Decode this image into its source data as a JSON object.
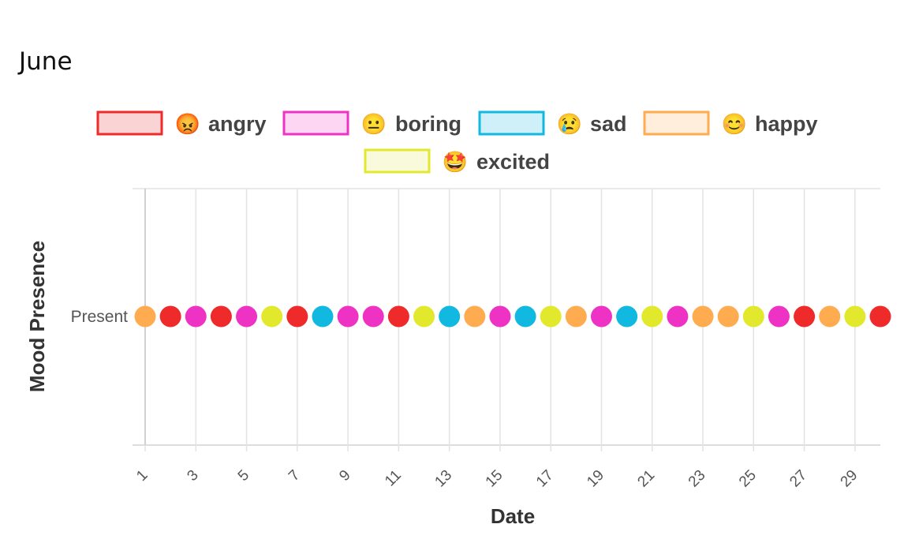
{
  "page": {
    "title": "June"
  },
  "chart_data": {
    "type": "scatter",
    "title": "",
    "xlabel": "Date",
    "ylabel": "Mood Presence",
    "y_categories": [
      "Present"
    ],
    "x_tick_labels": [
      "1",
      "3",
      "5",
      "7",
      "9",
      "11",
      "13",
      "15",
      "17",
      "19",
      "21",
      "23",
      "25",
      "27",
      "29"
    ],
    "xlim": [
      1,
      30
    ],
    "grid": true,
    "legend_position": "top",
    "legend": [
      {
        "key": "angry",
        "label": "angry",
        "emoji": "😡",
        "color": "#ee2a2a",
        "fill": "#fad4d4"
      },
      {
        "key": "boring",
        "label": "boring",
        "emoji": "😐",
        "color": "#ee33c4",
        "fill": "#fcd6f3"
      },
      {
        "key": "sad",
        "label": "sad",
        "emoji": "😢",
        "color": "#11b8e0",
        "fill": "#cff0f9"
      },
      {
        "key": "happy",
        "label": "happy",
        "emoji": "😊",
        "color": "#ffab50",
        "fill": "#ffeedc"
      },
      {
        "key": "excited",
        "label": "excited",
        "emoji": "🤩",
        "color": "#e2e82c",
        "fill": "#f9fadb"
      }
    ],
    "points": [
      {
        "x": 1,
        "mood": "happy"
      },
      {
        "x": 2,
        "mood": "angry"
      },
      {
        "x": 3,
        "mood": "boring"
      },
      {
        "x": 4,
        "mood": "angry"
      },
      {
        "x": 5,
        "mood": "boring"
      },
      {
        "x": 6,
        "mood": "excited"
      },
      {
        "x": 7,
        "mood": "angry"
      },
      {
        "x": 8,
        "mood": "sad"
      },
      {
        "x": 9,
        "mood": "boring"
      },
      {
        "x": 10,
        "mood": "boring"
      },
      {
        "x": 11,
        "mood": "angry"
      },
      {
        "x": 12,
        "mood": "excited"
      },
      {
        "x": 13,
        "mood": "sad"
      },
      {
        "x": 14,
        "mood": "happy"
      },
      {
        "x": 15,
        "mood": "boring"
      },
      {
        "x": 16,
        "mood": "sad"
      },
      {
        "x": 17,
        "mood": "excited"
      },
      {
        "x": 18,
        "mood": "happy"
      },
      {
        "x": 19,
        "mood": "boring"
      },
      {
        "x": 20,
        "mood": "sad"
      },
      {
        "x": 21,
        "mood": "excited"
      },
      {
        "x": 22,
        "mood": "boring"
      },
      {
        "x": 23,
        "mood": "happy"
      },
      {
        "x": 24,
        "mood": "happy"
      },
      {
        "x": 25,
        "mood": "excited"
      },
      {
        "x": 26,
        "mood": "boring"
      },
      {
        "x": 27,
        "mood": "angry"
      },
      {
        "x": 28,
        "mood": "happy"
      },
      {
        "x": 29,
        "mood": "excited"
      },
      {
        "x": 30,
        "mood": "angry"
      }
    ]
  }
}
